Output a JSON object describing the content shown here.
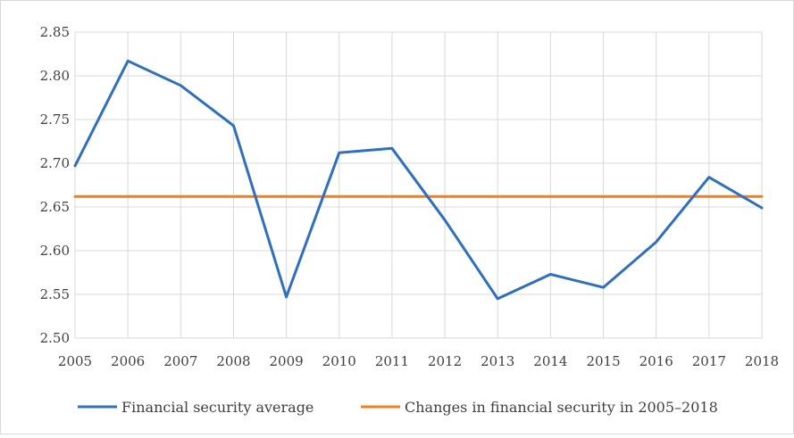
{
  "chart_data": {
    "type": "line",
    "title": "",
    "xlabel": "",
    "ylabel": "",
    "categories": [
      "2005",
      "2006",
      "2007",
      "2008",
      "2009",
      "2010",
      "2011",
      "2012",
      "2013",
      "2014",
      "2015",
      "2016",
      "2017",
      "2018"
    ],
    "ylim": [
      2.5,
      2.85
    ],
    "yticks": [
      "2.50",
      "2.55",
      "2.60",
      "2.65",
      "2.70",
      "2.75",
      "2.80",
      "2.85"
    ],
    "grid": true,
    "legend_position": "bottom",
    "series": [
      {
        "name": "Financial security average",
        "color": "#2e6fbe",
        "values": [
          2.697,
          2.817,
          2.789,
          2.743,
          2.547,
          2.712,
          2.717,
          2.635,
          2.545,
          2.573,
          2.558,
          2.61,
          2.684,
          2.649
        ]
      },
      {
        "name": "Changes in financial security in 2005–2018",
        "color": "#f07f1f",
        "values": [
          2.662,
          2.662,
          2.662,
          2.662,
          2.662,
          2.662,
          2.662,
          2.662,
          2.662,
          2.662,
          2.662,
          2.662,
          2.662,
          2.662
        ]
      }
    ]
  }
}
